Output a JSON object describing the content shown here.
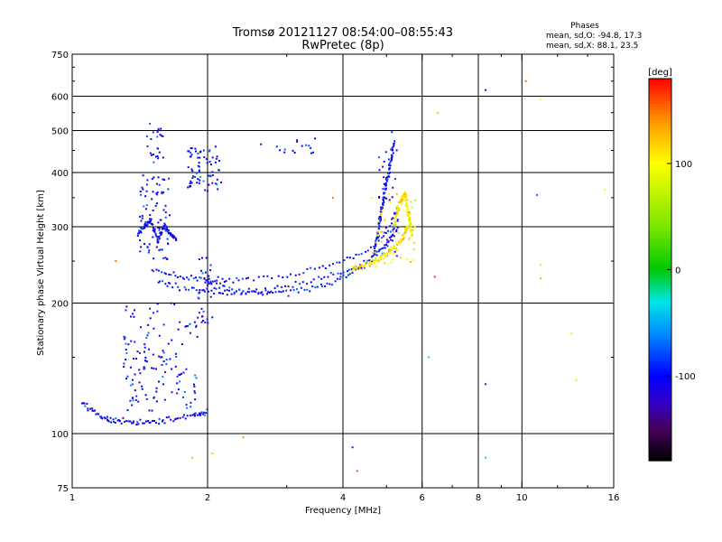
{
  "chart_data": {
    "type": "scatter",
    "title": "Tromsø 20121127 08:54:00–08:55:43",
    "subtitle": "RwPretec (8p)",
    "xlabel": "Frequency [MHz]",
    "ylabel": "Stationary phase Virtual Height [km]",
    "x_scale": "log",
    "y_scale": "log",
    "xlim": [
      1,
      16
    ],
    "ylim": [
      75,
      750
    ],
    "x_ticks": [
      1,
      2,
      4,
      6,
      8,
      10,
      16
    ],
    "x_tick_labels": [
      "1",
      "2",
      "4",
      "6",
      "8",
      "10",
      "16"
    ],
    "y_ticks": [
      75,
      100,
      200,
      300,
      400,
      500,
      600,
      750
    ],
    "y_tick_labels": [
      "75",
      "100",
      "200",
      "300",
      "400",
      "500",
      "600",
      "750"
    ],
    "grid": true,
    "phases_box": {
      "heading": "Phases",
      "line_o": "mean, sd,O: -94.8, 17.3",
      "line_x": "mean, sd,X:  88.1, 23.5"
    },
    "colorbar": {
      "label": "[deg]",
      "range": [
        -180,
        180
      ],
      "ticks": [
        100,
        0,
        -100
      ],
      "tick_labels": [
        "100",
        "0",
        "-100"
      ]
    },
    "series": [
      {
        "traces": [
          {
            "f": [
              1.05,
              1.15,
              1.25,
              1.4,
              1.6,
              1.85,
              2.0
            ],
            "h": [
              118,
              110,
              107,
              106,
              107,
              110,
              112
            ]
          },
          {
            "f": [
              1.5,
              1.65,
              1.8,
              1.95,
              2.05,
              2.2,
              2.5,
              3.0,
              3.5,
              4.0,
              4.5,
              5.0,
              5.3
            ],
            "h": [
              240,
              233,
              229,
              226,
              225,
              225,
              226,
              232,
              240,
              250,
              262,
              290,
              330
            ]
          },
          {
            "f": [
              1.55,
              1.7,
              1.9,
              2.1,
              2.3,
              2.6,
              3.0,
              3.5,
              4.0,
              4.5,
              5.0,
              5.3
            ],
            "h": [
              225,
              218,
              214,
              212,
              212,
              213,
              218,
              226,
              236,
              250,
              275,
              310
            ]
          },
          {
            "f": [
              2.0,
              2.3,
              2.6,
              3.0,
              3.5,
              4.0,
              4.5,
              5.0,
              5.3
            ],
            "h": [
              222,
              214,
              212,
              212,
              218,
              230,
              245,
              270,
              300
            ]
          },
          {
            "f": [
              1.4,
              1.45,
              1.5,
              1.55,
              1.6,
              1.65,
              1.7
            ],
            "h": [
              290,
              300,
              310,
              280,
              300,
              290,
              280
            ]
          },
          {
            "f": [
              4.7,
              4.8,
              4.9,
              5.0,
              5.1,
              5.2
            ],
            "h": [
              260,
              300,
              340,
              380,
              420,
              470
            ]
          }
        ],
        "clusters": [
          {
            "f": [
              1.3,
              1.9
            ],
            "h": [
              112,
              200
            ],
            "n": 70
          },
          {
            "f": [
              1.4,
              1.65
            ],
            "h": [
              250,
              400
            ],
            "n": 40
          },
          {
            "f": [
              1.45,
              1.6
            ],
            "h": [
              420,
              520
            ],
            "n": 12
          },
          {
            "f": [
              1.8,
              2.15
            ],
            "h": [
              360,
              460
            ],
            "n": 35
          },
          {
            "f": [
              1.9,
              2.05
            ],
            "h": [
              180,
              260
            ],
            "n": 15
          },
          {
            "f": [
              4.8,
              5.3
            ],
            "h": [
              250,
              500
            ],
            "n": 20
          },
          {
            "f": [
              2.6,
              3.5
            ],
            "h": [
              440,
              480
            ],
            "n": 8
          }
        ],
        "phase_deg": -100
      },
      {
        "traces": [
          {
            "f": [
              4.2,
              4.5,
              4.8,
              5.1,
              5.4,
              5.6
            ],
            "h": [
              240,
              245,
              252,
              262,
              280,
              300
            ]
          },
          {
            "f": [
              5.2,
              5.35,
              5.5,
              5.6,
              5.7
            ],
            "h": [
              300,
              340,
              360,
              320,
              290
            ]
          }
        ],
        "clusters": [
          {
            "f": [
              4.6,
              5.8
            ],
            "h": [
              240,
              360
            ],
            "n": 25
          }
        ],
        "phase_deg": 105
      }
    ],
    "scattered": [
      {
        "f": 1.25,
        "h": 250,
        "phase_deg": 150
      },
      {
        "f": 1.85,
        "h": 88,
        "phase_deg": 130
      },
      {
        "f": 2.4,
        "h": 98,
        "phase_deg": 140
      },
      {
        "f": 4.2,
        "h": 93,
        "phase_deg": -90
      },
      {
        "f": 4.3,
        "h": 82,
        "phase_deg": 160
      },
      {
        "f": 6.5,
        "h": 550,
        "phase_deg": 120
      },
      {
        "f": 6.4,
        "h": 230,
        "phase_deg": 170
      },
      {
        "f": 6.2,
        "h": 150,
        "phase_deg": -20
      },
      {
        "f": 8.3,
        "h": 620,
        "phase_deg": -120
      },
      {
        "f": 8.3,
        "h": 130,
        "phase_deg": -90
      },
      {
        "f": 8.3,
        "h": 88,
        "phase_deg": -20
      },
      {
        "f": 10.2,
        "h": 650,
        "phase_deg": 150
      },
      {
        "f": 11.0,
        "h": 590,
        "phase_deg": 100
      },
      {
        "f": 10.8,
        "h": 355,
        "phase_deg": -70
      },
      {
        "f": 11.0,
        "h": 245,
        "phase_deg": 110
      },
      {
        "f": 11.0,
        "h": 228,
        "phase_deg": 130
      },
      {
        "f": 12.9,
        "h": 170,
        "phase_deg": 110
      },
      {
        "f": 13.2,
        "h": 133,
        "phase_deg": 110
      },
      {
        "f": 15.3,
        "h": 365,
        "phase_deg": 90
      },
      {
        "f": 2.05,
        "h": 90,
        "phase_deg": 120
      },
      {
        "f": 3.8,
        "h": 350,
        "phase_deg": 150
      }
    ]
  }
}
